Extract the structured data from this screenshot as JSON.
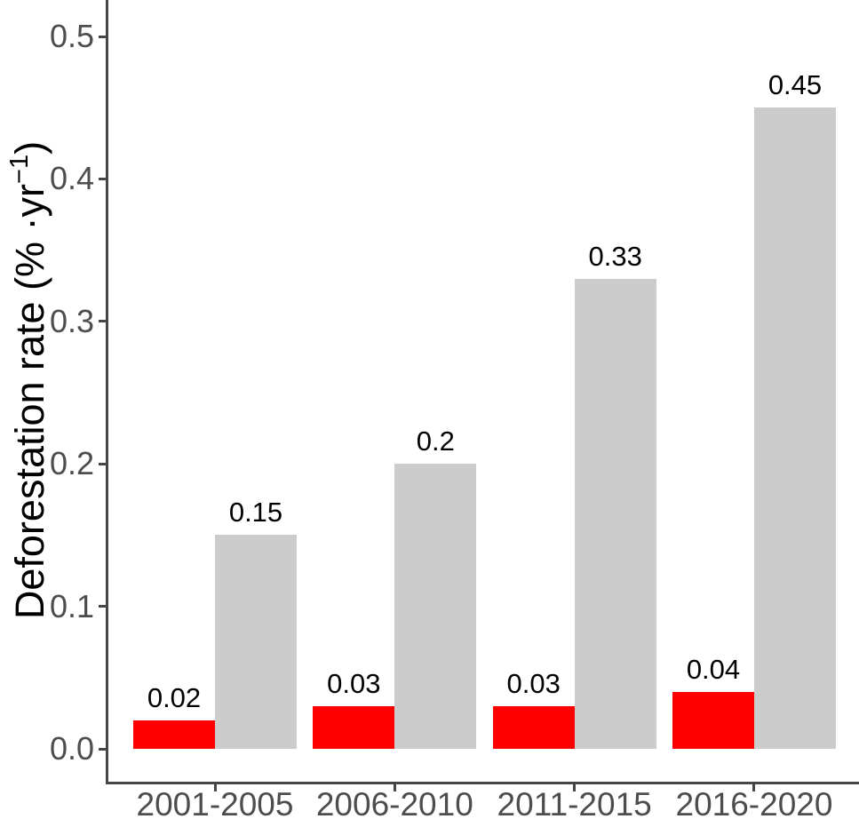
{
  "chart_data": {
    "type": "bar",
    "title": "",
    "categories": [
      "2001-2005",
      "2006-2010",
      "2011-2015",
      "2016-2020"
    ],
    "series": [
      {
        "name": "red-bars",
        "color": "#ff0000",
        "values": [
          0.02,
          0.03,
          0.03,
          0.04
        ],
        "labels": [
          "0.02",
          "0.03",
          "0.03",
          "0.04"
        ]
      },
      {
        "name": "grey-bars",
        "color": "#cccccc",
        "values": [
          0.15,
          0.2,
          0.33,
          0.45
        ],
        "labels": [
          "0.15",
          "0.2",
          "0.33",
          "0.45"
        ]
      }
    ],
    "xlabel": "",
    "ylabel": "Deforestation rate (% ·yr⁻¹)",
    "ylabel_parts": {
      "prefix": "Deforestation rate (% ·yr",
      "superscript": "−1",
      "suffix": ")"
    },
    "ylim": [
      0,
      0.5
    ],
    "yticks": [
      "0.0",
      "0.1",
      "0.2",
      "0.3",
      "0.4",
      "0.5"
    ],
    "ytick_values": [
      0.0,
      0.1,
      0.2,
      0.3,
      0.4,
      0.5
    ],
    "grid": false,
    "legend": "none",
    "bar_value_labels_shown": true
  },
  "colors": {
    "background": "#ffffff",
    "axis_line": "#464646",
    "axis_text": "#4d4d4d",
    "value_label_text": "#000000",
    "bar_red": "#ff0000",
    "bar_grey": "#cccccc"
  }
}
